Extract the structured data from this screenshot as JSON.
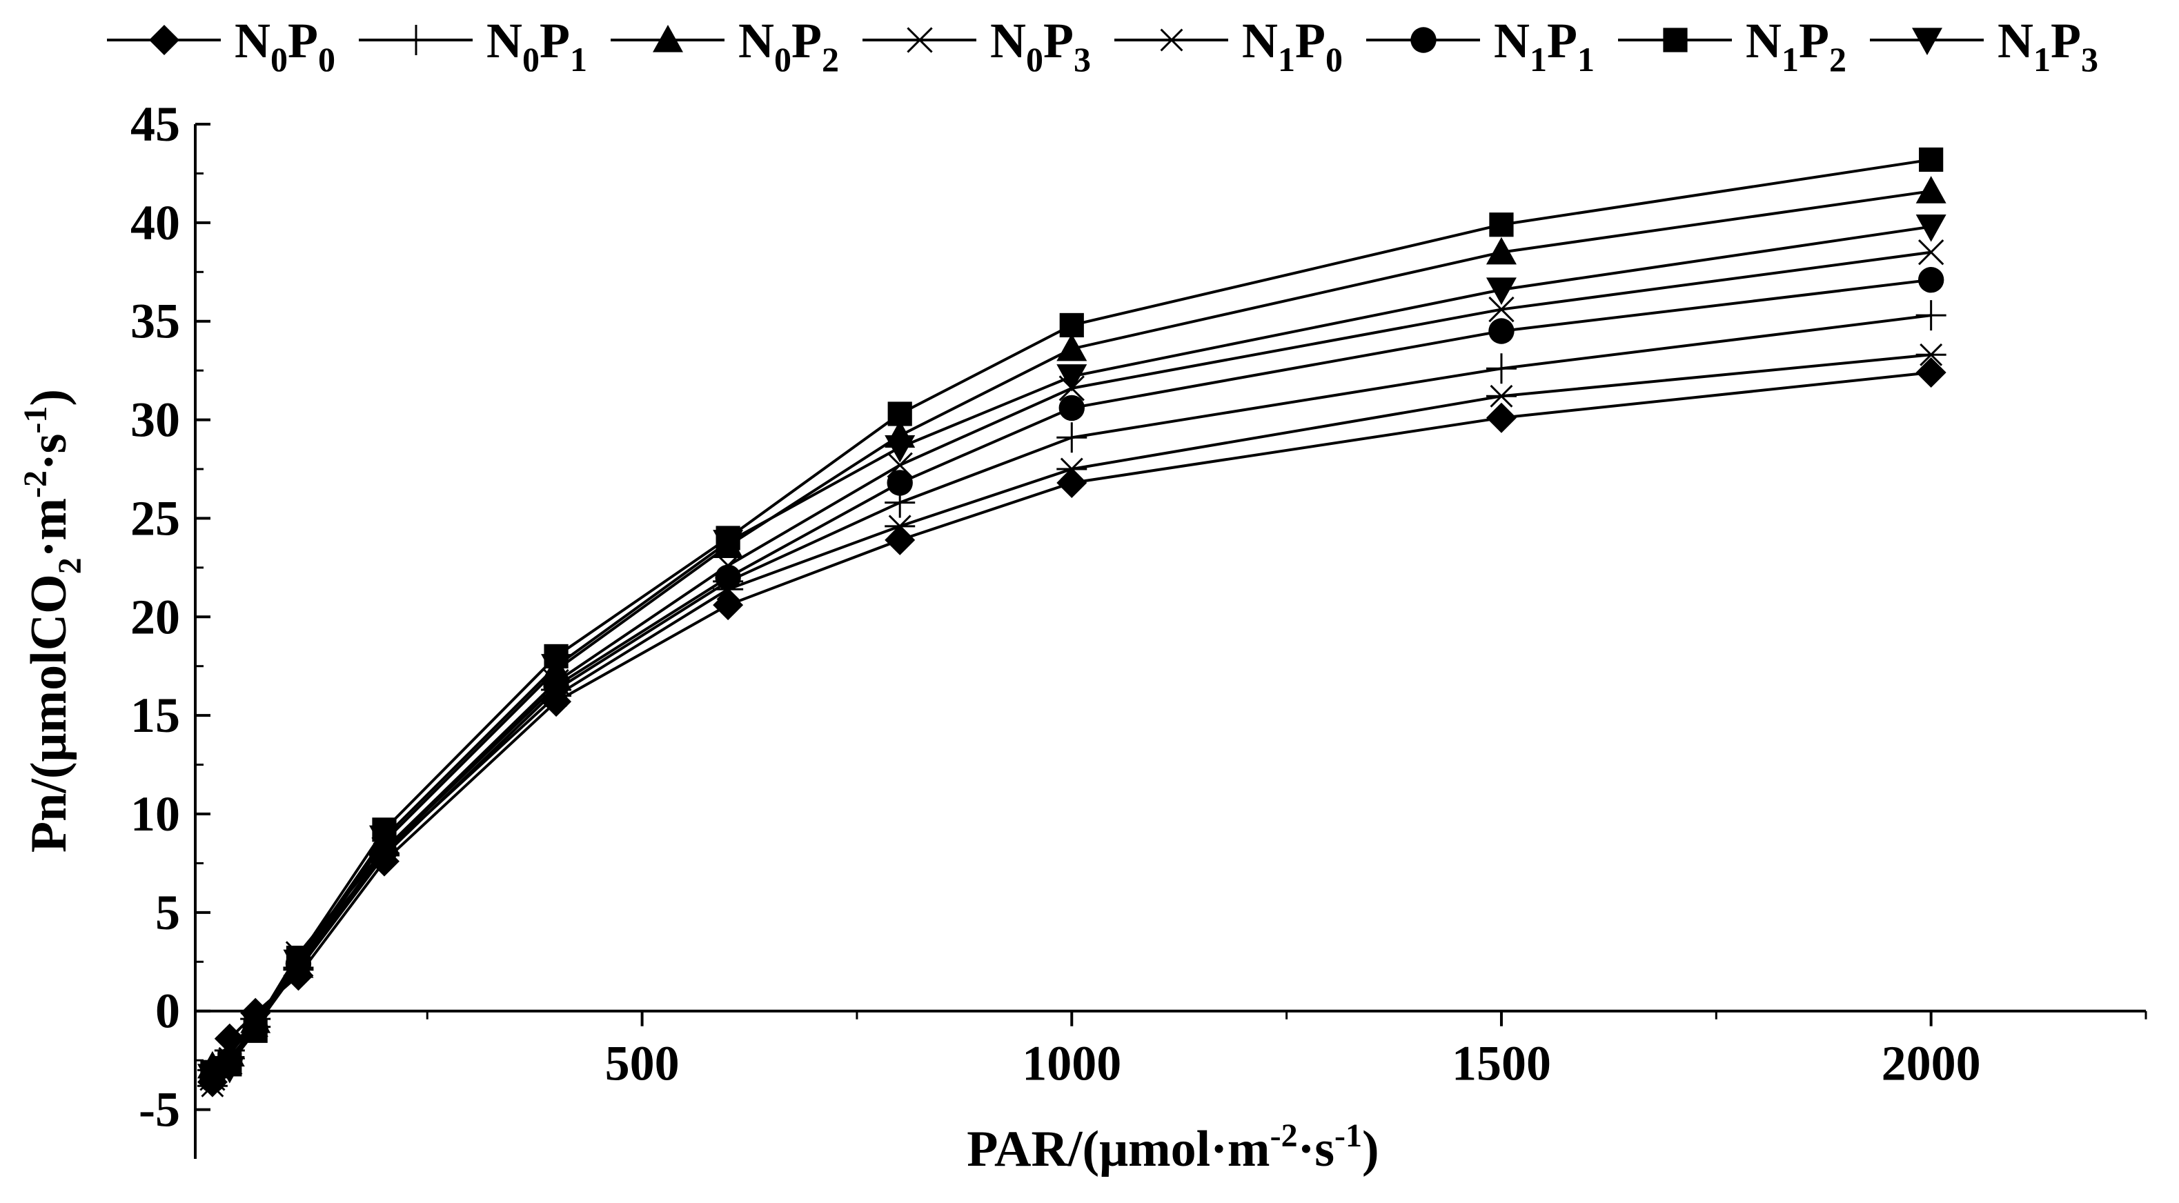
{
  "chart_data": {
    "type": "line",
    "title": "",
    "x": [
      0,
      20,
      50,
      100,
      200,
      400,
      600,
      800,
      1000,
      1500,
      2000
    ],
    "xlim": [
      -20,
      2250
    ],
    "ylim": [
      -7.5,
      45
    ],
    "xticks": [
      500,
      1000,
      1500,
      2000
    ],
    "xtick_labels": [
      "500",
      "1000",
      "1500",
      "2000"
    ],
    "yticks": [
      -5,
      0,
      5,
      10,
      15,
      20,
      25,
      30,
      35,
      40,
      45
    ],
    "ytick_labels": [
      "-5",
      "0",
      "5",
      "10",
      "15",
      "20",
      "25",
      "30",
      "35",
      "40",
      "45"
    ],
    "xlabel": {
      "pre": "PAR/(μmol·m",
      "sup1": "-2",
      "mid": "·s",
      "sup2": "-1",
      "post": ")"
    },
    "ylabel": {
      "pre": "Pn/(μmolCO",
      "sub": "2",
      "mid1": "·m",
      "sup1": "-2",
      "mid2": "·s",
      "sup2": "-1",
      "post": ")"
    },
    "legend_position": "top",
    "series": [
      {
        "name": "N0P0",
        "nsub": "0",
        "psub": "0",
        "marker": "diamond",
        "values": [
          -3.6,
          -1.4,
          -0.1,
          1.8,
          7.6,
          15.7,
          20.6,
          23.9,
          26.8,
          30.1,
          32.4
        ]
      },
      {
        "name": "N0P1",
        "nsub": "0",
        "psub": "1",
        "marker": "plus",
        "values": [
          -3.0,
          -2.0,
          -0.4,
          2.1,
          7.9,
          16.3,
          21.8,
          25.8,
          29.1,
          32.6,
          35.3
        ]
      },
      {
        "name": "N0P2",
        "nsub": "0",
        "psub": "2",
        "marker": "triangle",
        "values": [
          -2.8,
          -2.2,
          -0.5,
          2.3,
          8.6,
          17.3,
          23.6,
          29.2,
          33.6,
          38.5,
          41.6
        ]
      },
      {
        "name": "N0P3",
        "nsub": "0",
        "psub": "3",
        "marker": "x",
        "values": [
          -3.4,
          -2.6,
          -0.7,
          2.9,
          8.2,
          16.7,
          22.6,
          27.7,
          31.6,
          35.6,
          38.5
        ]
      },
      {
        "name": "N1P0",
        "nsub": "1",
        "psub": "0",
        "marker": "asterisk",
        "values": [
          -3.8,
          -2.4,
          -0.8,
          2.2,
          8.0,
          16.0,
          21.4,
          24.6,
          27.5,
          31.2,
          33.3
        ]
      },
      {
        "name": "N1P1",
        "nsub": "1",
        "psub": "1",
        "marker": "circle",
        "values": [
          -3.5,
          -2.5,
          -0.9,
          2.4,
          8.1,
          16.5,
          22.0,
          26.8,
          30.6,
          34.5,
          37.1
        ]
      },
      {
        "name": "N1P2",
        "nsub": "1",
        "psub": "2",
        "marker": "square",
        "values": [
          -3.1,
          -2.7,
          -1.0,
          2.7,
          9.2,
          18.0,
          24.0,
          30.3,
          34.8,
          39.9,
          43.2
        ]
      },
      {
        "name": "N1P3",
        "nsub": "1",
        "psub": "3",
        "marker": "invtriangle",
        "values": [
          -3.3,
          -2.9,
          -0.6,
          2.5,
          8.8,
          17.5,
          23.8,
          28.6,
          32.2,
          36.6,
          39.8
        ]
      }
    ],
    "colors": {
      "line": "#000000",
      "background": "#ffffff"
    }
  }
}
